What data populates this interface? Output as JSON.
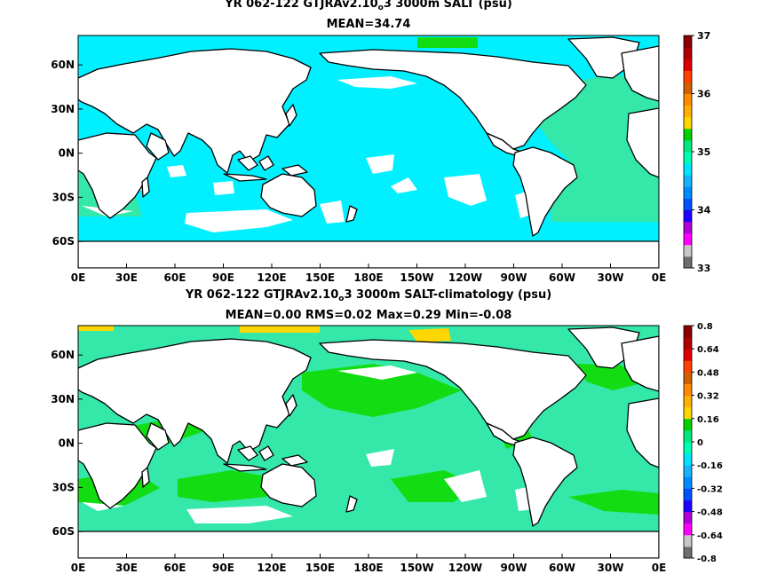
{
  "panels": [
    {
      "title_prefix": "YR 062-122 GTJRAv2.10",
      "title_sub": "o",
      "title_suffix": "3 3000m SALT (psu)",
      "stats": "MEAN=34.74",
      "colorbar_labels": [
        "37",
        "36",
        "35",
        "34",
        "33"
      ]
    },
    {
      "title_prefix": "YR 062-122 GTJRAv2.10",
      "title_sub": "o",
      "title_suffix": "3 3000m SALT-climatology (psu)",
      "stats": "MEAN=0.00   RMS=0.02   Max=0.29   Min=-0.08",
      "colorbar_labels": [
        "0.8",
        "0.64",
        "0.48",
        "0.32",
        "0.16",
        "0",
        "-0.16",
        "-0.32",
        "-0.48",
        "-0.64",
        "-0.8"
      ]
    }
  ],
  "chart_data": [
    {
      "type": "heatmap",
      "variable": "SALT",
      "units": "psu",
      "mean": 34.74,
      "colorbar_range": [
        33,
        37
      ],
      "x_ticks": [
        "0E",
        "30E",
        "60E",
        "90E",
        "120E",
        "150E",
        "180E",
        "150W",
        "120W",
        "90W",
        "60W",
        "30W",
        "0E"
      ],
      "y_ticks": [
        "60N",
        "30N",
        "0N",
        "30S",
        "60S"
      ],
      "dominant_values": {
        "Pacific and Indian deep water": 34.7,
        "Atlantic deep water": 34.9
      }
    },
    {
      "type": "heatmap",
      "variable": "SALT-climatology",
      "units": "psu",
      "mean": 0.0,
      "rms": 0.02,
      "max": 0.29,
      "min": -0.08,
      "colorbar_range": [
        -0.8,
        0.8
      ],
      "x_ticks": [
        "0E",
        "30E",
        "60E",
        "90E",
        "120E",
        "150E",
        "180E",
        "150W",
        "120W",
        "90W",
        "60W",
        "30W",
        "0E"
      ],
      "y_ticks": [
        "60N",
        "30N",
        "0N",
        "30S",
        "60S"
      ]
    }
  ],
  "colors": {
    "ocean_cyan": "#00f0ff",
    "ocean_aqua": "#33e8a8",
    "bright_green": "#12dd12",
    "yellow": "#ffd700",
    "land": "#ffffff",
    "coast": "#000000"
  }
}
